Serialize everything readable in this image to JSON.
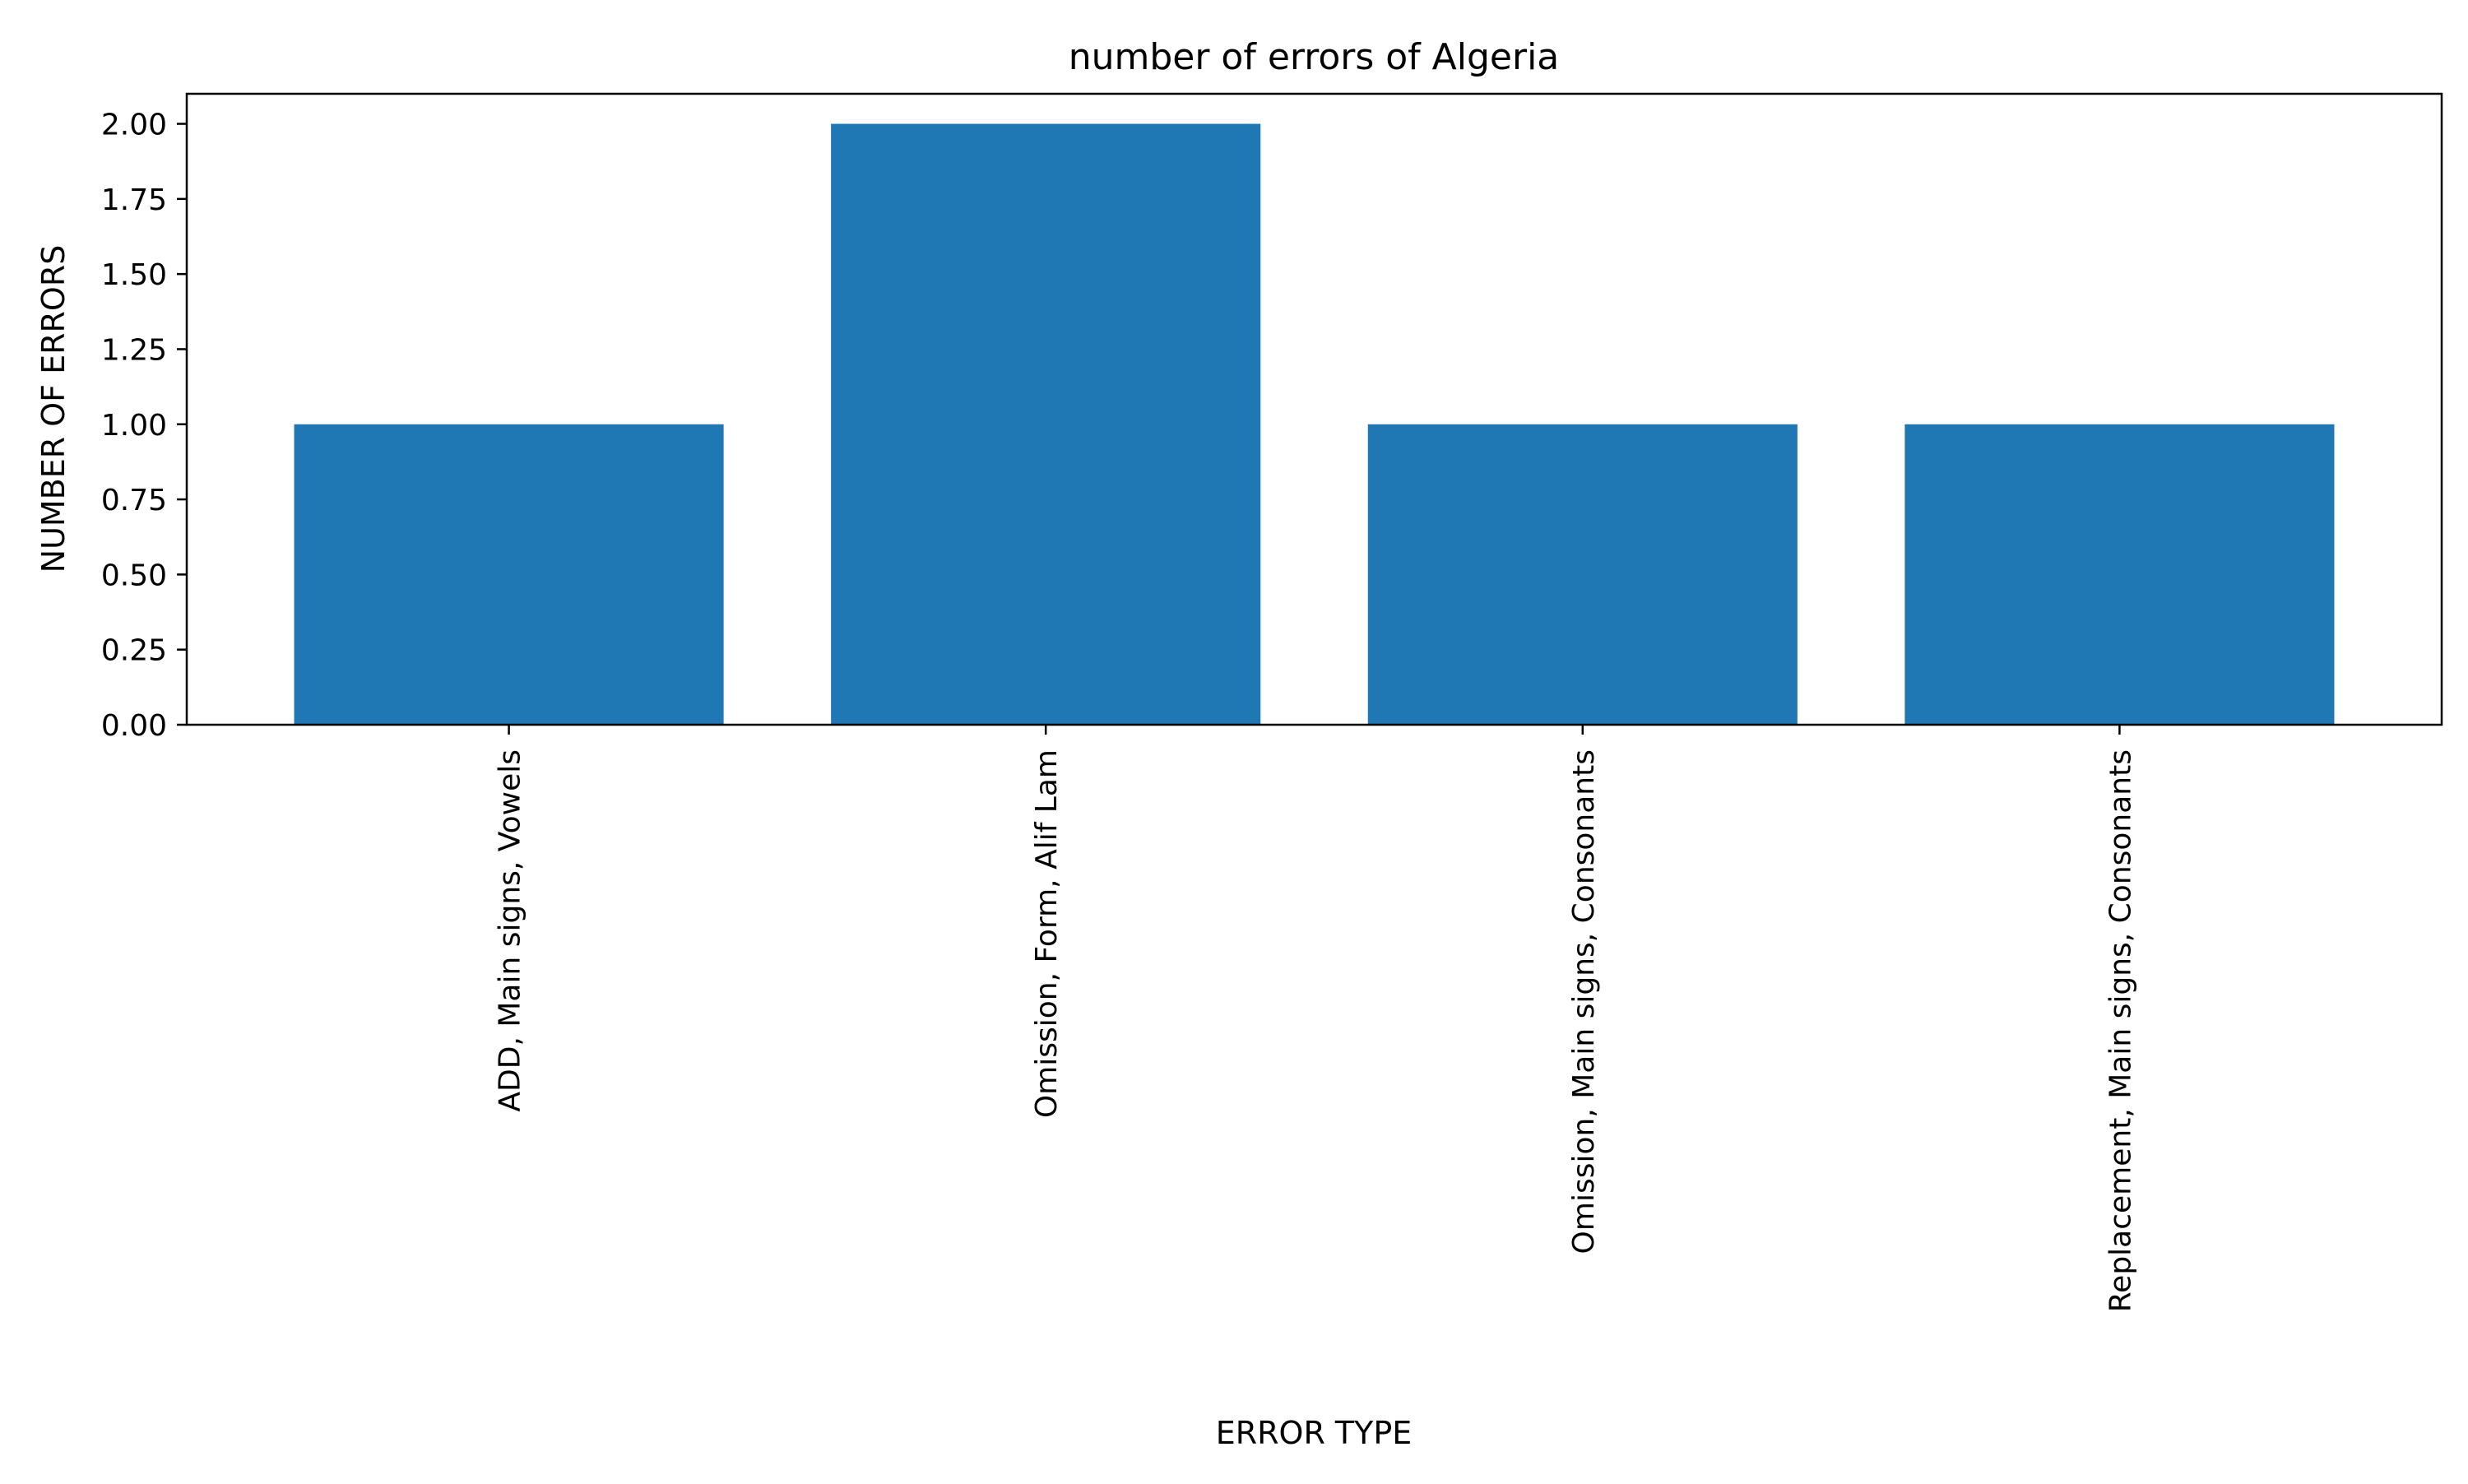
{
  "chart_data": {
    "type": "bar",
    "title": "number of errors of Algeria",
    "xlabel": "ERROR TYPE",
    "ylabel": "NUMBER OF ERRORS",
    "categories": [
      "ADD, Main signs, Vowels",
      "Omission, Form, Alif Lam",
      "Omission, Main signs, Consonants",
      "Replacement, Main signs, Consonants"
    ],
    "values": [
      1,
      2,
      1,
      1
    ],
    "ylim": [
      0,
      2.1
    ],
    "yticks": [
      "0.00",
      "0.25",
      "0.50",
      "0.75",
      "1.00",
      "1.25",
      "1.50",
      "1.75",
      "2.00"
    ],
    "grid": false,
    "legend": "none",
    "colors": {
      "bar": "#1f77b4",
      "axis": "#000000",
      "background": "#ffffff"
    }
  }
}
